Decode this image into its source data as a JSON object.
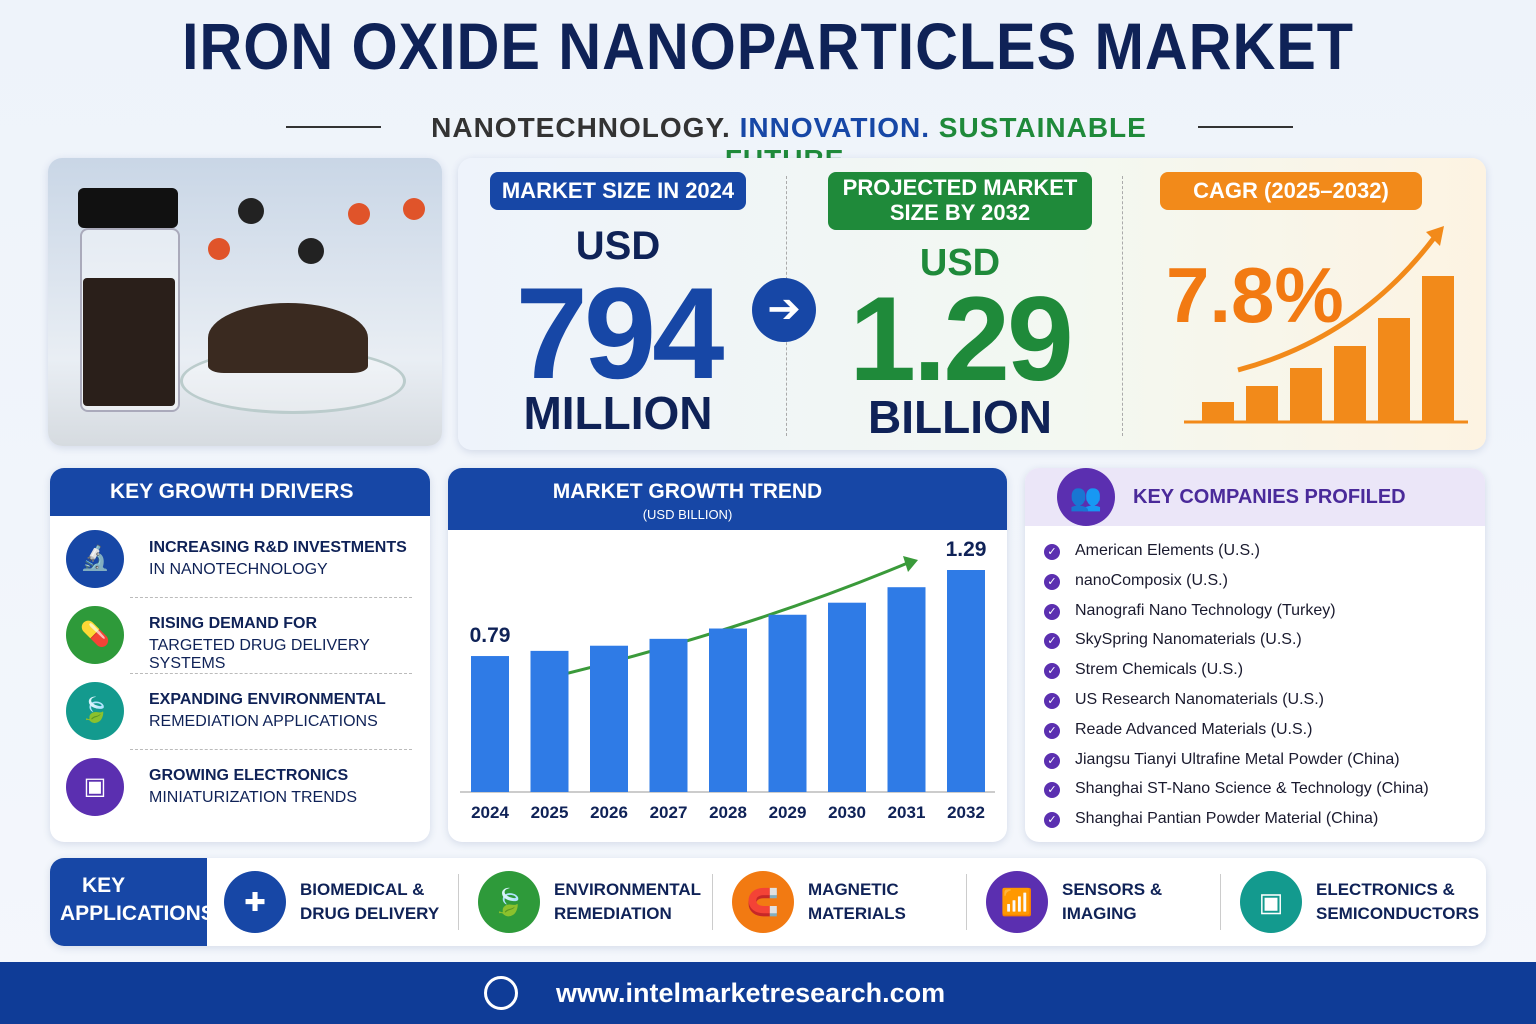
{
  "header": {
    "title": "IRON OXIDE NANOPARTICLES MARKET",
    "tagline": [
      "NANOTECHNOLOGY.",
      "INNOVATION.",
      "SUSTAINABLE FUTURE."
    ]
  },
  "stats": {
    "market_size": {
      "label": "MARKET SIZE IN 2024",
      "prefix": "USD",
      "value": "794",
      "unit": "MILLION"
    },
    "projected": {
      "label": "PROJECTED MARKET SIZE BY 2032",
      "prefix": "USD",
      "value": "1.29",
      "unit": "BILLION"
    },
    "cagr": {
      "label": "CAGR (2025–2032)",
      "value": "7.8%"
    }
  },
  "drivers": {
    "title": "KEY GROWTH DRIVERS",
    "items": [
      [
        "INCREASING R&D INVESTMENTS",
        "IN NANOTECHNOLOGY"
      ],
      [
        "RISING DEMAND FOR",
        "TARGETED DRUG DELIVERY SYSTEMS"
      ],
      [
        "EXPANDING ENVIRONMENTAL",
        "REMEDIATION APPLICATIONS"
      ],
      [
        "GROWING ELECTRONICS",
        "MINIATURIZATION TRENDS"
      ]
    ]
  },
  "chart_data": {
    "type": "bar",
    "title": "MARKET GROWTH TREND",
    "subtitle": "(USD BILLION)",
    "categories": [
      "2024",
      "2025",
      "2026",
      "2027",
      "2028",
      "2029",
      "2030",
      "2031",
      "2032"
    ],
    "values": [
      0.79,
      0.82,
      0.85,
      0.89,
      0.95,
      1.03,
      1.1,
      1.19,
      1.29
    ],
    "value_labels": [
      "0.79",
      null,
      null,
      null,
      null,
      null,
      null,
      null,
      "1.29"
    ],
    "color": "#2f7be6"
  },
  "companies": {
    "title": "KEY COMPANIES PROFILED",
    "items": [
      "American Elements (U.S.)",
      "nanoComposix (U.S.)",
      "Nanografi Nano Technology (Turkey)",
      "SkySpring Nanomaterials (U.S.)",
      "Strem Chemicals (U.S.)",
      "US Research Nanomaterials (U.S.)",
      "Reade Advanced Materials (U.S.)",
      "Jiangsu Tianyi Ultrafine Metal Powder (China)",
      "Shanghai ST-Nano Science & Technology (China)",
      "Shanghai Pantian Powder Material (China)"
    ]
  },
  "applications": {
    "title": [
      "KEY",
      "APPLICATIONS"
    ],
    "items": [
      [
        "BIOMEDICAL &",
        "DRUG DELIVERY"
      ],
      [
        "ENVIRONMENTAL",
        "REMEDIATION"
      ],
      [
        "MAGNETIC",
        "MATERIALS"
      ],
      [
        "SENSORS &",
        "IMAGING"
      ],
      [
        "ELECTRONICS &",
        "SEMICONDUCTORS"
      ]
    ]
  },
  "footer": {
    "url": "www.intelmarketresearch.com"
  }
}
